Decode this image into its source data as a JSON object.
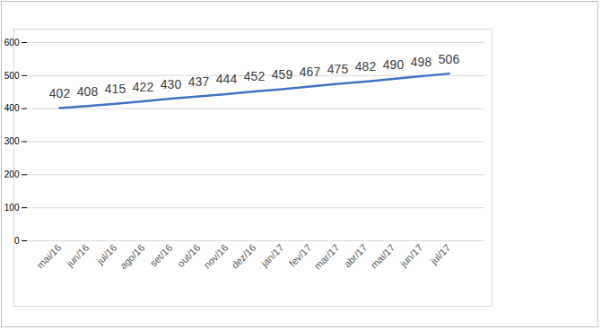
{
  "chart_data": {
    "type": "line",
    "categories": [
      "mai/16",
      "jun/16",
      "jul/16",
      "ago/16",
      "set/16",
      "out/16",
      "nov/16",
      "dez/16",
      "jan/17",
      "fev/17",
      "mar/17",
      "abr/17",
      "mai/17",
      "jun/17",
      "jul/17"
    ],
    "values": [
      402,
      408,
      415,
      422,
      430,
      437,
      444,
      452,
      459,
      467,
      475,
      482,
      490,
      498,
      506
    ],
    "color": "#4472c4",
    "ylim": [
      0,
      600
    ],
    "yticks": [
      0,
      100,
      200,
      300,
      400,
      500,
      600
    ],
    "grid": true,
    "data_labels": true,
    "tick_labels": "x"
  }
}
